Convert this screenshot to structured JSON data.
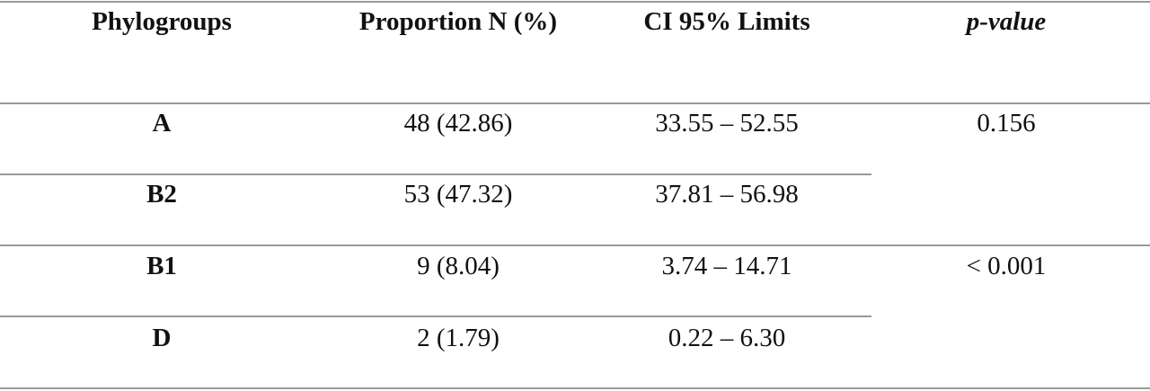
{
  "table": {
    "headers": [
      "Phylogroups",
      "Proportion N (%)",
      "CI 95% Limits",
      "p-value"
    ],
    "rows": [
      {
        "group": "A",
        "proportion": "48 (42.86)",
        "ci": "33.55 – 52.55"
      },
      {
        "group": "B2",
        "proportion": "53 (47.32)",
        "ci": "37.81 – 56.98"
      },
      {
        "group": "B1",
        "proportion": "9 (8.04)",
        "ci": "3.74 – 14.71"
      },
      {
        "group": "D",
        "proportion": "2 (1.79)",
        "ci": "0.22 – 6.30"
      }
    ],
    "p_values": [
      "0.156",
      "< 0.001"
    ]
  }
}
